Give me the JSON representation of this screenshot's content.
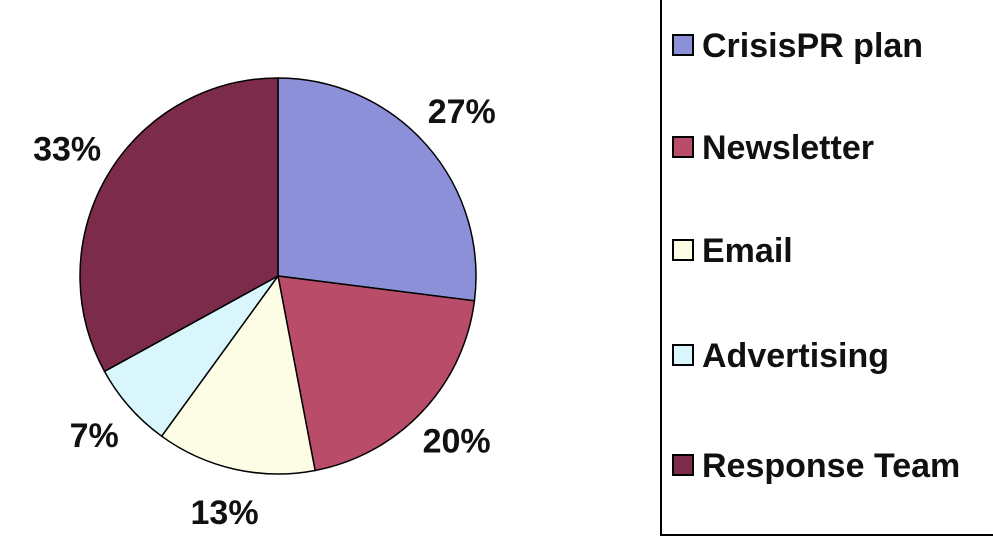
{
  "chart_data": {
    "type": "pie",
    "categories": [
      "CrisisPR plan",
      "Newsletter",
      "Email",
      "Advertising",
      "Response Team"
    ],
    "values": [
      27,
      20,
      13,
      7,
      33
    ],
    "value_labels": [
      "27%",
      "20%",
      "13%",
      "7%",
      "33%"
    ],
    "colors": [
      "#8c90d8",
      "#b84c69",
      "#fdfde6",
      "#d8f6fb",
      "#7c2b4a"
    ],
    "legend": "right"
  }
}
